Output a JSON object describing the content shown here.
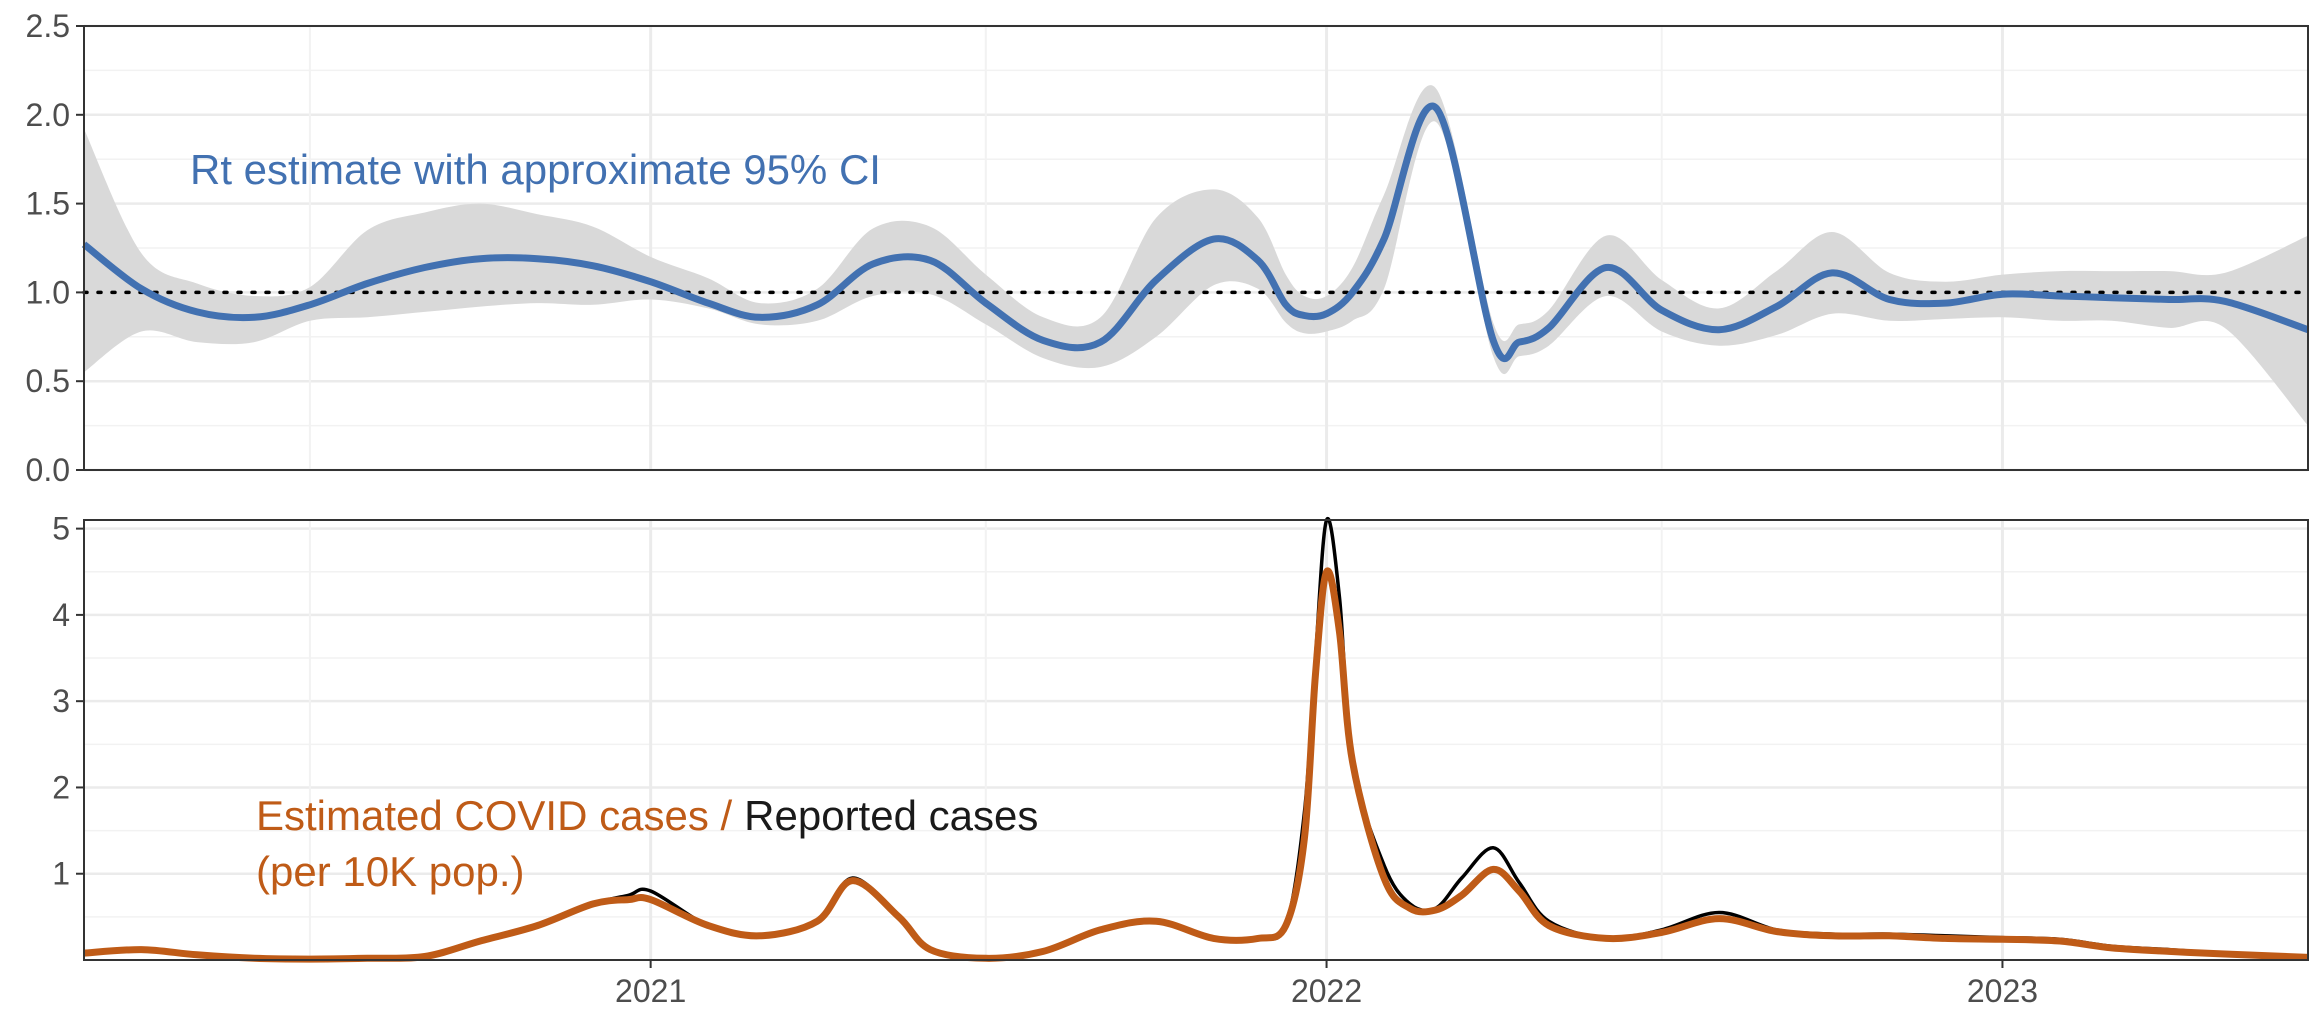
{
  "chart_data": [
    {
      "type": "line",
      "panel": "top",
      "ylim": [
        0,
        2.5
      ],
      "y_ticks": [
        "0.0",
        "0.5",
        "1.0",
        "1.5",
        "2.0",
        "2.5"
      ],
      "x_range": [
        "2020-03-01",
        "2023-06-15"
      ],
      "grid": true,
      "reference_line": 1.0,
      "annotation": "Rt estimate with approximate 95% CI",
      "colors": {
        "line": "#4271b1",
        "band": "#d9d9d9",
        "annotation": "#4271b1"
      },
      "series": [
        {
          "name": "Rt estimate with approximate 95% CI",
          "x": [
            "2020-03-01",
            "2020-04-01",
            "2020-05-01",
            "2020-06-01",
            "2020-07-01",
            "2020-08-01",
            "2020-09-01",
            "2020-10-01",
            "2020-11-01",
            "2020-12-01",
            "2021-01-01",
            "2021-02-01",
            "2021-03-01",
            "2021-04-01",
            "2021-05-01",
            "2021-06-01",
            "2021-07-01",
            "2021-08-01",
            "2021-09-01",
            "2021-10-01",
            "2021-11-01",
            "2021-11-25",
            "2021-12-10",
            "2021-12-20",
            "2022-01-01",
            "2022-01-15",
            "2022-02-01",
            "2022-03-01",
            "2022-04-01",
            "2022-04-15",
            "2022-05-01",
            "2022-06-01",
            "2022-07-01",
            "2022-08-01",
            "2022-09-01",
            "2022-10-01",
            "2022-11-01",
            "2022-12-01",
            "2023-01-01",
            "2023-02-01",
            "2023-03-01",
            "2023-04-01",
            "2023-05-01",
            "2023-06-15"
          ],
          "y": [
            1.27,
            1.02,
            0.89,
            0.86,
            0.93,
            1.05,
            1.14,
            1.19,
            1.19,
            1.15,
            1.06,
            0.94,
            0.86,
            0.93,
            1.16,
            1.18,
            0.94,
            0.73,
            0.72,
            1.07,
            1.3,
            1.18,
            0.93,
            0.87,
            0.88,
            1.0,
            1.3,
            2.04,
            0.73,
            0.72,
            0.8,
            1.14,
            0.9,
            0.79,
            0.92,
            1.11,
            0.96,
            0.94,
            0.99,
            0.98,
            0.97,
            0.96,
            0.95,
            0.79
          ],
          "ci_lower": [
            0.55,
            0.78,
            0.72,
            0.72,
            0.84,
            0.86,
            0.89,
            0.92,
            0.94,
            0.93,
            0.96,
            0.91,
            0.82,
            0.84,
            0.98,
            0.99,
            0.82,
            0.63,
            0.58,
            0.75,
            1.04,
            1.02,
            0.83,
            0.77,
            0.78,
            0.84,
            1.02,
            1.96,
            0.64,
            0.64,
            0.7,
            0.98,
            0.78,
            0.7,
            0.76,
            0.88,
            0.84,
            0.85,
            0.86,
            0.84,
            0.84,
            0.8,
            0.8,
            0.25
          ],
          "ci_upper": [
            1.92,
            1.22,
            1.05,
            0.98,
            1.03,
            1.35,
            1.45,
            1.5,
            1.44,
            1.37,
            1.2,
            1.08,
            0.94,
            1.02,
            1.36,
            1.37,
            1.1,
            0.86,
            0.86,
            1.42,
            1.58,
            1.42,
            1.1,
            0.98,
            0.98,
            1.14,
            1.55,
            2.15,
            0.83,
            0.82,
            0.9,
            1.32,
            1.07,
            0.91,
            1.12,
            1.34,
            1.11,
            1.06,
            1.1,
            1.12,
            1.12,
            1.12,
            1.11,
            1.32
          ]
        }
      ]
    },
    {
      "type": "line",
      "panel": "bottom",
      "ylim": [
        0,
        5.1
      ],
      "y_ticks": [
        "1",
        "2",
        "3",
        "4",
        "5"
      ],
      "x_range": [
        "2020-03-01",
        "2023-06-15"
      ],
      "x_ticks": [
        "2021",
        "2022",
        "2023"
      ],
      "grid": true,
      "annotation": {
        "part1": "Estimated COVID cases /",
        "part2": "Reported cases",
        "line2": "(per 10K pop.)"
      },
      "colors": {
        "estimated": "#bf5b17",
        "reported": "#000000"
      },
      "series": [
        {
          "name": "Estimated COVID cases",
          "x": [
            "2020-03-01",
            "2020-04-01",
            "2020-05-01",
            "2020-06-01",
            "2020-07-01",
            "2020-08-01",
            "2020-09-01",
            "2020-10-01",
            "2020-11-01",
            "2020-12-01",
            "2020-12-20",
            "2021-01-01",
            "2021-02-01",
            "2021-03-01",
            "2021-04-01",
            "2021-04-20",
            "2021-05-15",
            "2021-06-01",
            "2021-07-01",
            "2021-08-01",
            "2021-09-01",
            "2021-10-01",
            "2021-11-01",
            "2021-11-25",
            "2021-12-10",
            "2021-12-20",
            "2021-12-26",
            "2022-01-01",
            "2022-01-08",
            "2022-01-15",
            "2022-02-01",
            "2022-02-15",
            "2022-03-01",
            "2022-03-15",
            "2022-04-01",
            "2022-04-15",
            "2022-05-01",
            "2022-06-01",
            "2022-07-01",
            "2022-08-01",
            "2022-09-01",
            "2022-10-01",
            "2022-11-01",
            "2022-12-01",
            "2023-01-01",
            "2023-02-01",
            "2023-03-01",
            "2023-04-01",
            "2023-05-01",
            "2023-06-15"
          ],
          "y": [
            0.08,
            0.12,
            0.06,
            0.02,
            0.01,
            0.02,
            0.04,
            0.22,
            0.4,
            0.65,
            0.7,
            0.7,
            0.4,
            0.28,
            0.45,
            0.92,
            0.5,
            0.12,
            0.02,
            0.1,
            0.35,
            0.45,
            0.25,
            0.25,
            0.4,
            1.4,
            3.3,
            4.5,
            3.8,
            2.3,
            0.95,
            0.6,
            0.58,
            0.75,
            1.05,
            0.8,
            0.4,
            0.25,
            0.32,
            0.48,
            0.33,
            0.28,
            0.28,
            0.25,
            0.24,
            0.22,
            0.14,
            0.1,
            0.07,
            0.03
          ]
        },
        {
          "name": "Reported cases",
          "x": [
            "2020-03-01",
            "2020-04-01",
            "2020-05-01",
            "2020-06-01",
            "2020-07-01",
            "2020-08-01",
            "2020-09-01",
            "2020-10-01",
            "2020-11-01",
            "2020-12-01",
            "2020-12-20",
            "2021-01-01",
            "2021-02-01",
            "2021-03-01",
            "2021-04-01",
            "2021-04-20",
            "2021-05-15",
            "2021-06-01",
            "2021-07-01",
            "2021-08-01",
            "2021-09-01",
            "2021-10-01",
            "2021-11-01",
            "2021-11-25",
            "2021-12-10",
            "2021-12-20",
            "2021-12-26",
            "2022-01-01",
            "2022-01-08",
            "2022-01-15",
            "2022-02-01",
            "2022-02-15",
            "2022-03-01",
            "2022-03-15",
            "2022-04-01",
            "2022-04-15",
            "2022-05-01",
            "2022-06-01",
            "2022-07-01",
            "2022-08-01",
            "2022-09-01",
            "2022-10-01",
            "2022-11-01",
            "2022-12-01",
            "2023-01-01",
            "2023-02-01",
            "2023-03-01",
            "2023-04-01",
            "2023-05-01",
            "2023-06-15"
          ],
          "y": [
            0.08,
            0.12,
            0.06,
            0.02,
            0.01,
            0.02,
            0.04,
            0.22,
            0.4,
            0.65,
            0.75,
            0.8,
            0.4,
            0.28,
            0.45,
            0.95,
            0.5,
            0.12,
            0.02,
            0.1,
            0.35,
            0.45,
            0.25,
            0.25,
            0.4,
            1.7,
            3.5,
            5.1,
            4.2,
            2.3,
            1.1,
            0.65,
            0.6,
            0.95,
            1.3,
            0.9,
            0.45,
            0.25,
            0.35,
            0.55,
            0.35,
            0.3,
            0.3,
            0.28,
            0.26,
            0.24,
            0.16,
            0.12,
            0.08,
            0.04
          ]
        }
      ]
    }
  ]
}
